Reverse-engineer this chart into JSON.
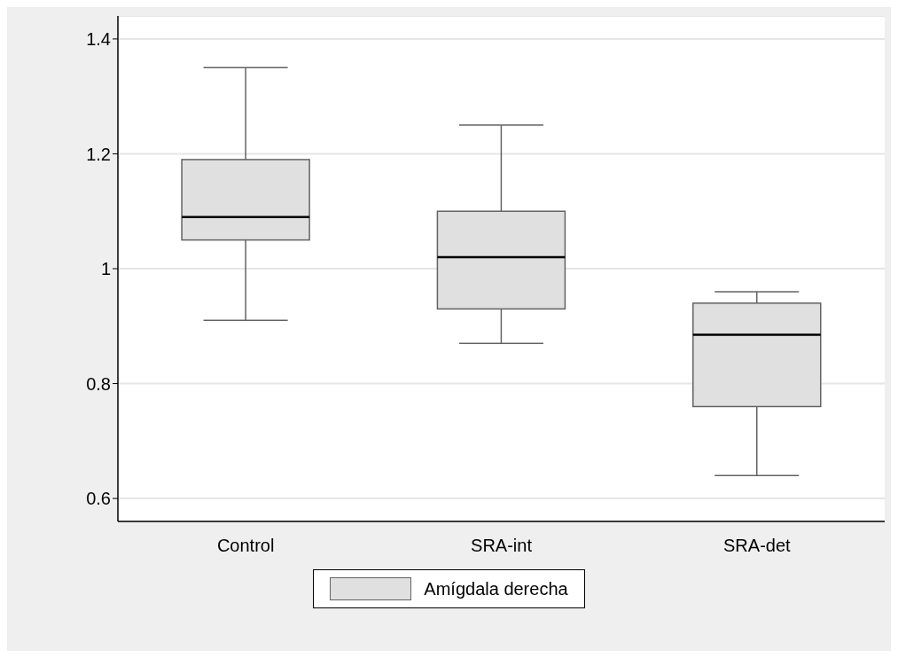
{
  "chart_data": {
    "type": "box",
    "categories": [
      "Control",
      "SRA-int",
      "SRA-det"
    ],
    "series": [
      {
        "name": "Amígdala derecha",
        "color": "#e0e0e0",
        "boxes": [
          {
            "low": 0.91,
            "q1": 1.05,
            "median": 1.09,
            "q3": 1.19,
            "high": 1.35
          },
          {
            "low": 0.87,
            "q1": 0.93,
            "median": 1.02,
            "q3": 1.1,
            "high": 1.25
          },
          {
            "low": 0.64,
            "q1": 0.76,
            "median": 0.885,
            "q3": 0.94,
            "high": 0.96
          }
        ]
      }
    ],
    "ylim": [
      0.56,
      1.44
    ],
    "yticks": [
      0.6,
      0.8,
      {
        "value": 1,
        "label": "1"
      },
      1.2,
      1.4
    ],
    "grid": "y",
    "legend": "bottom"
  }
}
